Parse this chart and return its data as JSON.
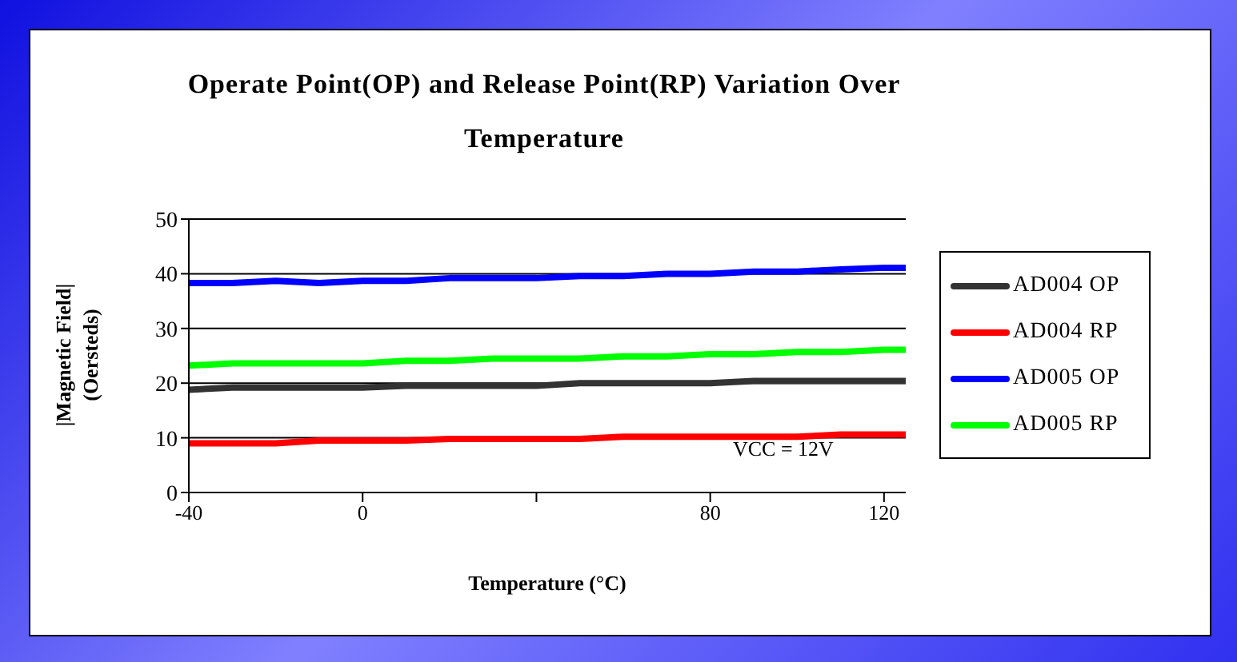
{
  "chart_data": {
    "type": "line",
    "title": "Operate Point(OP) and Release Point(RP) Variation Over Temperature",
    "xlabel": "Temperature (°C)",
    "ylabel": "|Magnetic Field|\n(Oersteds)",
    "x": [
      -40,
      -30,
      -20,
      -10,
      0,
      10,
      20,
      30,
      40,
      50,
      60,
      70,
      80,
      90,
      100,
      110,
      120,
      125
    ],
    "series": [
      {
        "name": "AD004 OP",
        "color": "#333333",
        "values": [
          18.8,
          19.2,
          19.2,
          19.2,
          19.2,
          19.5,
          19.5,
          19.5,
          19.5,
          20,
          20,
          20,
          20,
          20.4,
          20.4,
          20.4,
          20.4,
          20.4
        ]
      },
      {
        "name": "AD004 RP",
        "color": "#ff0000",
        "values": [
          9,
          9,
          9,
          9.5,
          9.5,
          9.5,
          9.8,
          9.8,
          9.8,
          9.8,
          10.2,
          10.2,
          10.2,
          10.2,
          10.2,
          10.6,
          10.6,
          10.6
        ]
      },
      {
        "name": "AD005 OP",
        "color": "#0000ff",
        "values": [
          38.3,
          38.3,
          38.7,
          38.3,
          38.7,
          38.7,
          39.2,
          39.2,
          39.2,
          39.6,
          39.6,
          40,
          40,
          40.4,
          40.4,
          40.8,
          41.1,
          41.1
        ]
      },
      {
        "name": "AD005 RP",
        "color": "#00ff00",
        "values": [
          23.2,
          23.6,
          23.6,
          23.6,
          23.6,
          24.1,
          24.1,
          24.5,
          24.5,
          24.5,
          24.9,
          24.9,
          25.3,
          25.3,
          25.7,
          25.7,
          26.1,
          26.1
        ]
      }
    ],
    "xlim": [
      -40,
      125
    ],
    "xticks": [
      -40,
      0,
      {
        "value": 40,
        "label": null
      },
      80,
      120
    ],
    "ylim": [
      0,
      50
    ],
    "yticks": [
      0,
      10,
      20,
      30,
      40,
      50
    ],
    "grid": "y",
    "legend": "right",
    "marker": "none",
    "line_style": "solid",
    "annotations": [
      "VCC = 12V"
    ]
  }
}
